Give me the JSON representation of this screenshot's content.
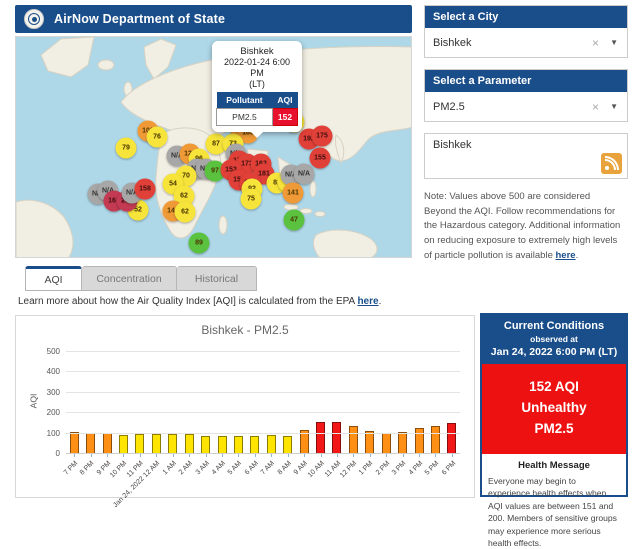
{
  "header": {
    "title": "AirNow Department of State"
  },
  "sidebar": {
    "city_panel": {
      "title": "Select a City",
      "value": "Bishkek"
    },
    "parameter_panel": {
      "title": "Select a Parameter",
      "value": "PM2.5"
    },
    "feed_box": {
      "label": "Bishkek"
    },
    "icons": {
      "clear": "×",
      "caret": "▼"
    },
    "note": {
      "text": "Note: Values above 500 are considered Beyond the AQI. Follow recommendations for the Hazardous category. Additional information on reducing exposure to extremely high levels of particle pollution is available ",
      "link": "here",
      "suffix": "."
    }
  },
  "map": {
    "popup": {
      "city": "Bishkek",
      "datetime": "2022-01-24 6:00 PM",
      "tz": "(LT)",
      "col_pollutant": "Pollutant",
      "col_aqi": "AQI",
      "pollutant": "PM2.5",
      "aqi": "152"
    },
    "markers": [
      {
        "value": "102",
        "x": 132,
        "y": 94,
        "level": "orange"
      },
      {
        "value": "76",
        "x": 141,
        "y": 100,
        "level": "yellow"
      },
      {
        "value": "79",
        "x": 110,
        "y": 111,
        "level": "yellow"
      },
      {
        "value": "N/A",
        "x": 161,
        "y": 119,
        "level": "gray"
      },
      {
        "value": "124",
        "x": 174,
        "y": 117,
        "level": "orange"
      },
      {
        "value": "96",
        "x": 183,
        "y": 122,
        "level": "yellow"
      },
      {
        "value": "N/A",
        "x": 181,
        "y": 132,
        "level": "gray"
      },
      {
        "value": "N/A",
        "x": 190,
        "y": 132,
        "level": "gray"
      },
      {
        "value": "97",
        "x": 199,
        "y": 134,
        "level": "green"
      },
      {
        "value": "87",
        "x": 200,
        "y": 107,
        "level": "yellow"
      },
      {
        "value": "70",
        "x": 170,
        "y": 139,
        "level": "yellow"
      },
      {
        "value": "54",
        "x": 157,
        "y": 147,
        "level": "yellow"
      },
      {
        "value": "62",
        "x": 168,
        "y": 159,
        "level": "yellow"
      },
      {
        "value": "146",
        "x": 157,
        "y": 174,
        "level": "orange"
      },
      {
        "value": "62",
        "x": 169,
        "y": 175,
        "level": "yellow"
      },
      {
        "value": "52",
        "x": 122,
        "y": 173,
        "level": "yellow"
      },
      {
        "value": "N/A",
        "x": 82,
        "y": 157,
        "level": "gray"
      },
      {
        "value": "N/A",
        "x": 92,
        "y": 154,
        "level": "gray"
      },
      {
        "value": "161",
        "x": 98,
        "y": 164,
        "level": "darkred"
      },
      {
        "value": "265",
        "x": 111,
        "y": 164,
        "level": "darkred"
      },
      {
        "value": "N/A",
        "x": 116,
        "y": 156,
        "level": "gray"
      },
      {
        "value": "158",
        "x": 129,
        "y": 152,
        "level": "red"
      },
      {
        "value": "89",
        "x": 183,
        "y": 206,
        "level": "green"
      },
      {
        "value": "110",
        "x": 225,
        "y": 93,
        "level": "orange"
      },
      {
        "value": "103",
        "x": 232,
        "y": 96,
        "level": "orange"
      },
      {
        "value": "73",
        "x": 217,
        "y": 107,
        "level": "yellow"
      },
      {
        "value": "N/A",
        "x": 220,
        "y": 117,
        "level": "gray"
      },
      {
        "value": "174",
        "x": 223,
        "y": 124,
        "level": "red"
      },
      {
        "value": "173",
        "x": 231,
        "y": 127,
        "level": "red"
      },
      {
        "value": "162",
        "x": 245,
        "y": 127,
        "level": "red"
      },
      {
        "value": "153",
        "x": 215,
        "y": 133,
        "level": "red"
      },
      {
        "value": "181",
        "x": 248,
        "y": 137,
        "level": "red"
      },
      {
        "value": "154",
        "x": 223,
        "y": 143,
        "level": "red"
      },
      {
        "value": "173",
        "x": 234,
        "y": 146,
        "level": "red"
      },
      {
        "value": "92",
        "x": 236,
        "y": 152,
        "level": "yellow"
      },
      {
        "value": "75",
        "x": 235,
        "y": 162,
        "level": "yellow"
      },
      {
        "value": "81",
        "x": 261,
        "y": 146,
        "level": "yellow"
      },
      {
        "value": "65",
        "x": 272,
        "y": 145,
        "level": "yellow"
      },
      {
        "value": "N/A",
        "x": 275,
        "y": 138,
        "level": "gray"
      },
      {
        "value": "N/A",
        "x": 288,
        "y": 137,
        "level": "gray"
      },
      {
        "value": "141",
        "x": 277,
        "y": 156,
        "level": "orange"
      },
      {
        "value": "47",
        "x": 278,
        "y": 183,
        "level": "green"
      },
      {
        "value": "81",
        "x": 278,
        "y": 85,
        "level": "yellow"
      },
      {
        "value": "192",
        "x": 293,
        "y": 102,
        "level": "red"
      },
      {
        "value": "175",
        "x": 306,
        "y": 99,
        "level": "red"
      },
      {
        "value": "155",
        "x": 304,
        "y": 121,
        "level": "red"
      }
    ]
  },
  "tabs": [
    {
      "label": "AQI",
      "active": true
    },
    {
      "label": "Concentration",
      "active": false
    },
    {
      "label": "Historical",
      "active": false
    }
  ],
  "learn_more": {
    "text": "Learn more about how the Air Quality Index [AQI] is calculated from the EPA ",
    "link": "here",
    "suffix": "."
  },
  "chart_data": {
    "type": "bar",
    "title": "Bishkek - PM2.5",
    "ylabel": "AQI",
    "xlabel": "",
    "ylim": [
      0,
      500
    ],
    "yticks": [
      0,
      100,
      200,
      300,
      400,
      500
    ],
    "grid": true,
    "categories": [
      "7 PM",
      "8 PM",
      "9 PM",
      "10 PM",
      "11 PM",
      "Jan 24, 2022 12 AM",
      "1 AM",
      "2 AM",
      "3 AM",
      "4 AM",
      "5 AM",
      "6 AM",
      "7 AM",
      "8 AM",
      "9 AM",
      "10 AM",
      "11 AM",
      "12 PM",
      "1 PM",
      "2 PM",
      "3 PM",
      "4 PM",
      "5 PM",
      "6 PM"
    ],
    "values": [
      106,
      104,
      101,
      95,
      96,
      96,
      96,
      97,
      88,
      89,
      87,
      90,
      93,
      87,
      117,
      157,
      155,
      135,
      113,
      103,
      108,
      127,
      137,
      152
    ],
    "levels": [
      "orange",
      "orange",
      "orange",
      "yellow",
      "yellow",
      "yellow",
      "yellow",
      "yellow",
      "yellow",
      "yellow",
      "yellow",
      "yellow",
      "yellow",
      "yellow",
      "orange",
      "red",
      "red",
      "orange",
      "orange",
      "orange",
      "orange",
      "orange",
      "orange",
      "red"
    ]
  },
  "current_conditions": {
    "title": "Current Conditions",
    "observed_label": "observed at",
    "observed_time": "Jan 24, 2022 6:00 PM (LT)",
    "aqi_line": "152 AQI",
    "category": "Unhealthy",
    "parameter": "PM2.5",
    "health_title": "Health Message",
    "health_text": "Everyone may begin to experience health effects when AQI values are between 151 and 200. Members of sensitive groups may experience more serious health effects."
  },
  "colors": {
    "accent_blue": "#1a4e8a",
    "alert_red": "#ee1111",
    "popup_aqi_red": "#e8112d",
    "marker": {
      "green": "#5bc240",
      "yellow": "#f6e43b",
      "orange": "#f09a37",
      "red": "#e04038",
      "darkred": "#c43a52",
      "gray": "#a7a7a7"
    },
    "bar": {
      "yellow": "#ffe400",
      "orange": "#ff9015",
      "red": "#f21818"
    }
  }
}
